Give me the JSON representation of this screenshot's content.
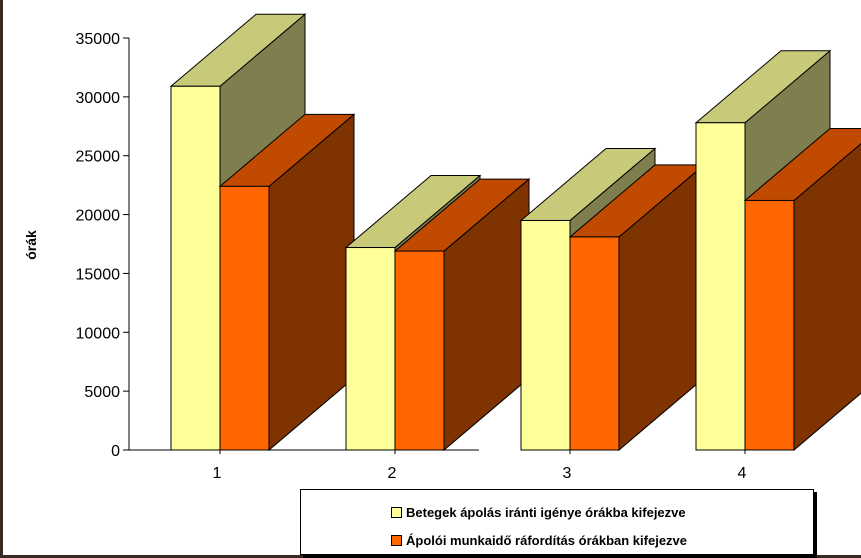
{
  "chart_data": {
    "type": "bar",
    "categories": [
      "1",
      "2",
      "3",
      "4"
    ],
    "series": [
      {
        "name": "Betegek ápolás iránti igénye órákba kifejezve",
        "values": [
          30900,
          17200,
          19500,
          27800
        ],
        "color": "#ffff99"
      },
      {
        "name": "Ápolói munkaidő ráfordítás órákban kifejezve",
        "values": [
          22400,
          16900,
          18100,
          21200
        ],
        "color": "#ff6600"
      }
    ],
    "ylabel": "órák",
    "xlabel": "",
    "ylim": [
      0,
      35000
    ],
    "yticks": [
      "0",
      "5000",
      "10000",
      "15000",
      "20000",
      "25000",
      "30000",
      "35000"
    ],
    "legend_position": "bottom"
  }
}
